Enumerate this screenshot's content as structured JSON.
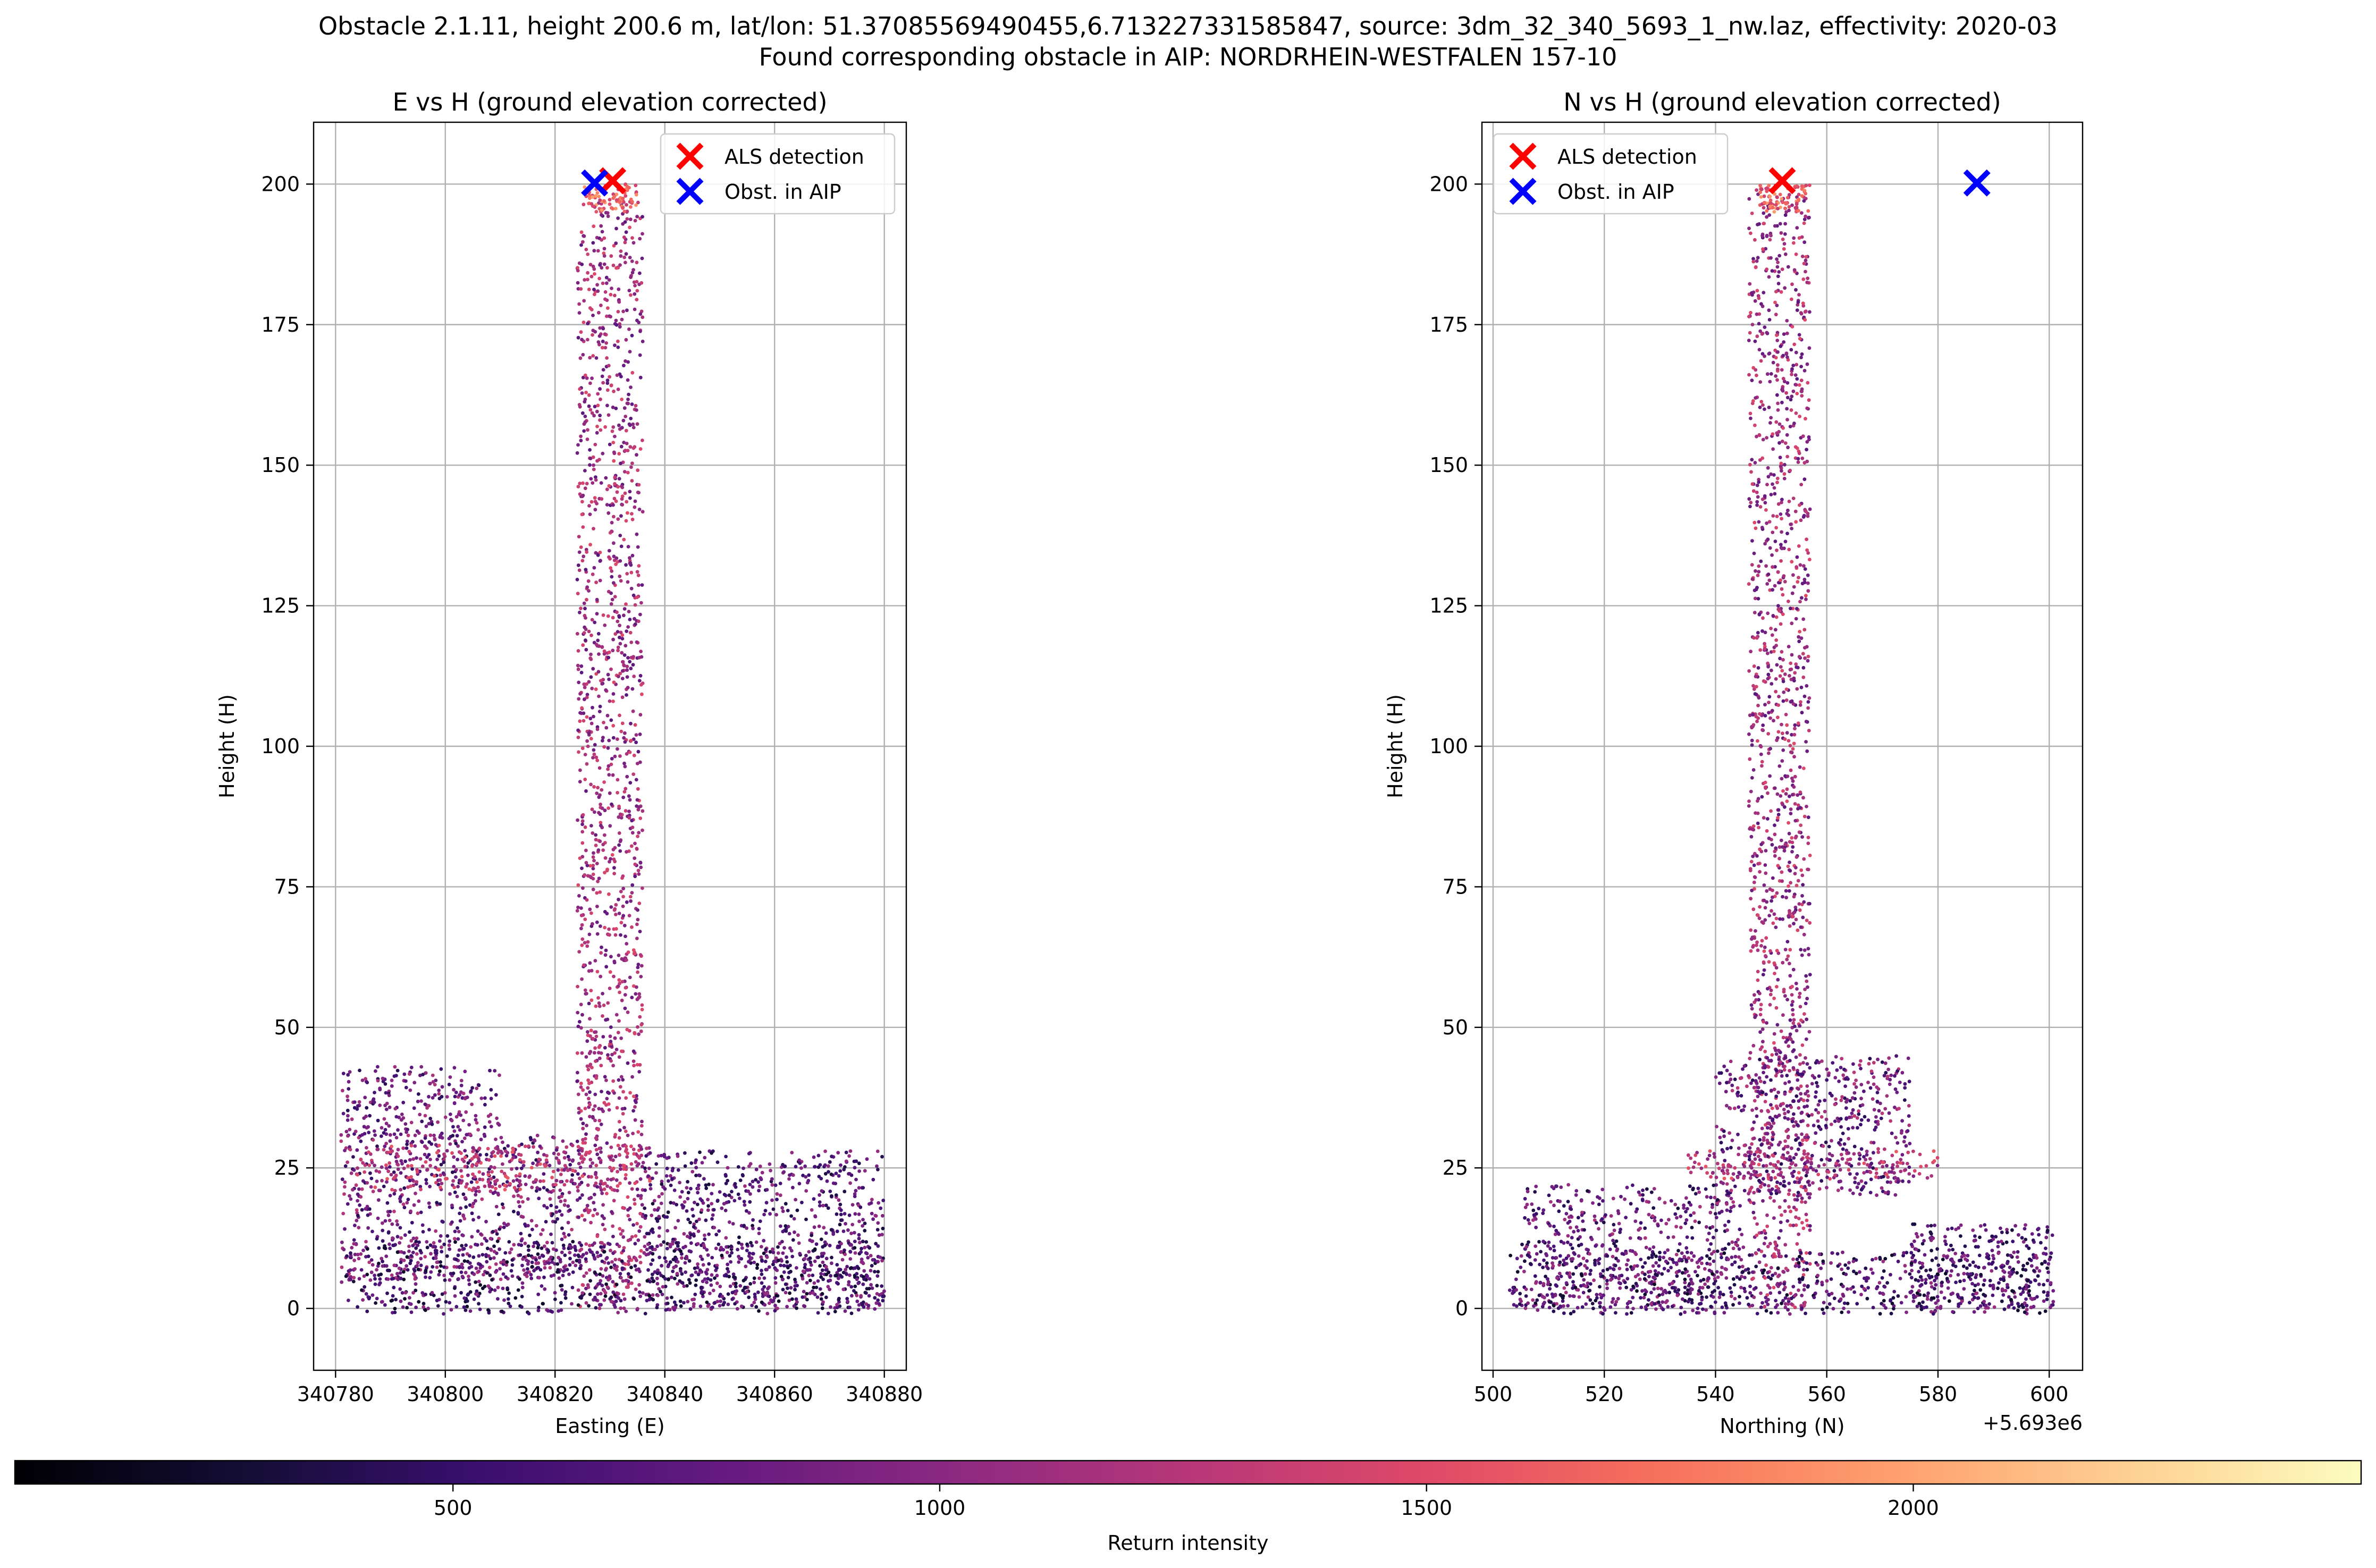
{
  "suptitle_line1": "Obstacle 2.1.11, height 200.6 m, lat/lon: 51.37085569490455,6.713227331585847, source: 3dm_32_340_5693_1_nw.laz, effectivity: 2020-03",
  "suptitle_line2": "Found corresponding obstacle in AIP: NORDRHEIN-WESTFALEN 157-10",
  "colors": {
    "als_marker": "#ff0000",
    "aip_marker": "#0000ff",
    "colormap": "magma",
    "grid": "#b0b0b0"
  },
  "chart_data": [
    {
      "type": "scatter",
      "title": "E vs H (ground elevation corrected)",
      "xlabel": "Easting (E)",
      "ylabel": "Height (H)",
      "xlim": [
        340776,
        340884
      ],
      "ylim": [
        -11,
        211
      ],
      "xticks": [
        340780,
        340800,
        340820,
        340840,
        340860,
        340880
      ],
      "xtick_labels": [
        "340780",
        "340800",
        "340820",
        "340840",
        "340860",
        "340880"
      ],
      "yticks": [
        0,
        25,
        50,
        75,
        100,
        125,
        150,
        175,
        200
      ],
      "ytick_labels": [
        "0",
        "25",
        "50",
        "75",
        "100",
        "125",
        "150",
        "175",
        "200"
      ],
      "grid": true,
      "legend": "top-right",
      "markers": [
        {
          "name": "ALS detection",
          "x": 340830.5,
          "y": 200.6,
          "color": "#ff0000"
        },
        {
          "name": "Obst. in AIP",
          "x": 340827.2,
          "y": 200.2,
          "color": "#0000ff"
        }
      ],
      "point_cloud": {
        "value": "Return intensity",
        "structures": [
          {
            "part": "tower",
            "x": [
              340824,
              340836
            ],
            "y": [
              0,
              197
            ],
            "intensity": [
              700,
              1500
            ]
          },
          {
            "part": "tower-top",
            "x": [
              340825,
              340835
            ],
            "y": [
              195,
              200
            ],
            "intensity": [
              1300,
              2000
            ]
          },
          {
            "part": "building-left-upper",
            "x": [
              340781,
              340810
            ],
            "y": [
              30,
              43
            ],
            "intensity": [
              400,
              1200
            ]
          },
          {
            "part": "building-left-lower",
            "x": [
              340781,
              340825
            ],
            "y": [
              5,
              31
            ],
            "intensity": [
              400,
              1300
            ]
          },
          {
            "part": "roof-band",
            "x": [
              340782,
              340838
            ],
            "y": [
              21,
              29
            ],
            "intensity": [
              900,
              1600
            ]
          },
          {
            "part": "building-right",
            "x": [
              340836,
              340880
            ],
            "y": [
              0,
              28
            ],
            "intensity": [
              300,
              1100
            ]
          },
          {
            "part": "ground-clutter",
            "x": [
              340781,
              340880
            ],
            "y": [
              -1,
              12
            ],
            "intensity": [
              200,
              1100
            ]
          }
        ]
      }
    },
    {
      "type": "scatter",
      "title": "N vs H (ground elevation corrected)",
      "xlabel": "Northing (N)",
      "ylabel": "Height (H)",
      "offset_label": "+5.693e6",
      "xlim": [
        498,
        606
      ],
      "ylim": [
        -11,
        211
      ],
      "xticks": [
        500,
        520,
        540,
        560,
        580,
        600
      ],
      "xtick_labels": [
        "500",
        "520",
        "540",
        "560",
        "580",
        "600"
      ],
      "yticks": [
        0,
        25,
        50,
        75,
        100,
        125,
        150,
        175,
        200
      ],
      "ytick_labels": [
        "0",
        "25",
        "50",
        "75",
        "100",
        "125",
        "150",
        "175",
        "200"
      ],
      "grid": true,
      "legend": "top-left",
      "markers": [
        {
          "name": "ALS detection",
          "x": 552,
          "y": 200.6,
          "color": "#ff0000"
        },
        {
          "name": "Obst. in AIP",
          "x": 587,
          "y": 200.2,
          "color": "#0000ff"
        }
      ],
      "point_cloud": {
        "value": "Return intensity",
        "structures": [
          {
            "part": "tower",
            "x": [
              546,
              557
            ],
            "y": [
              0,
              199
            ],
            "intensity": [
              700,
              1500
            ]
          },
          {
            "part": "tower-top",
            "x": [
              548,
              557
            ],
            "y": [
              195,
              200
            ],
            "intensity": [
              1300,
              2000
            ]
          },
          {
            "part": "building-left",
            "x": [
              505,
              545
            ],
            "y": [
              0,
              22
            ],
            "intensity": [
              300,
              1200
            ]
          },
          {
            "part": "building-mid",
            "x": [
              540,
              575
            ],
            "y": [
              20,
              45
            ],
            "intensity": [
              400,
              1300
            ]
          },
          {
            "part": "roof-band",
            "x": [
              535,
              580
            ],
            "y": [
              23,
              28
            ],
            "intensity": [
              900,
              1600
            ]
          },
          {
            "part": "building-right",
            "x": [
              575,
              601
            ],
            "y": [
              0,
              15
            ],
            "intensity": [
              300,
              1000
            ]
          },
          {
            "part": "ground-clutter",
            "x": [
              503,
              601
            ],
            "y": [
              -1,
              10
            ],
            "intensity": [
              200,
              1100
            ]
          }
        ]
      }
    }
  ],
  "colorbar": {
    "label": "Return intensity",
    "min": 50,
    "max": 2460,
    "ticks": [
      500,
      1000,
      1500,
      2000
    ],
    "tick_labels": [
      "500",
      "1000",
      "1500",
      "2000"
    ],
    "cmap": "magma"
  }
}
